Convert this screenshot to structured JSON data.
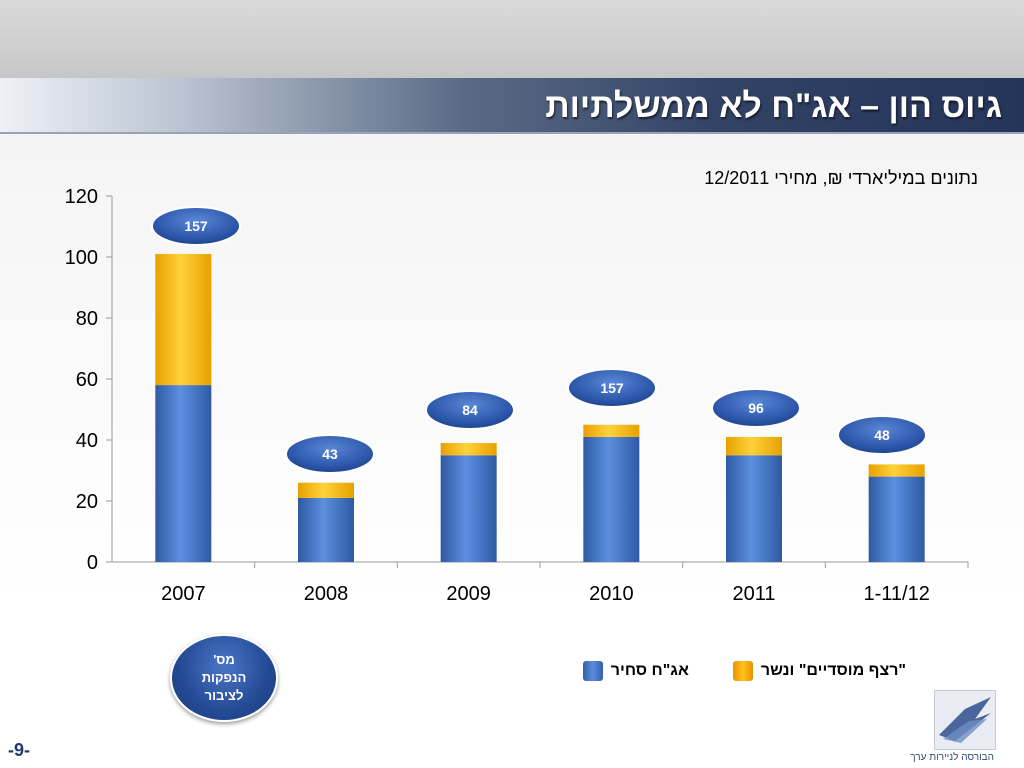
{
  "slide": {
    "title": "גיוס הון – אג\"ח לא ממשלתיות",
    "subtitle": "נתונים במיליארדי ₪, מחירי 12/2011",
    "page_number": "-9-",
    "tax_badge": "מס'\nהנפקות\nלציבור",
    "logo_caption": "הבורסה לניירות ערך"
  },
  "legend": {
    "series1": "אג\"ח סחיר",
    "series2": "\"רצף מוסדיים\" ונשר"
  },
  "colors": {
    "series1": "#4a78c8",
    "series2": "#ffc000",
    "badge": "#2a55a8"
  },
  "chart_data": {
    "type": "bar",
    "stacked": true,
    "categories": [
      "2007",
      "2008",
      "2009",
      "2010",
      "2011",
      "1-11/12"
    ],
    "series": [
      {
        "name": "אג\"ח סחיר",
        "values": [
          58,
          21,
          35,
          41,
          35,
          28
        ]
      },
      {
        "name": "\"רצף מוסדיים\" ונשר",
        "values": [
          43,
          5,
          4,
          4,
          6,
          4
        ]
      }
    ],
    "issue_counts": [
      "157",
      "43",
      "84",
      "157",
      "96",
      "48"
    ],
    "ylim": [
      0,
      120
    ],
    "yticks": [
      0,
      20,
      40,
      60,
      80,
      100,
      120
    ],
    "grid": false,
    "legend_position": "bottom"
  }
}
